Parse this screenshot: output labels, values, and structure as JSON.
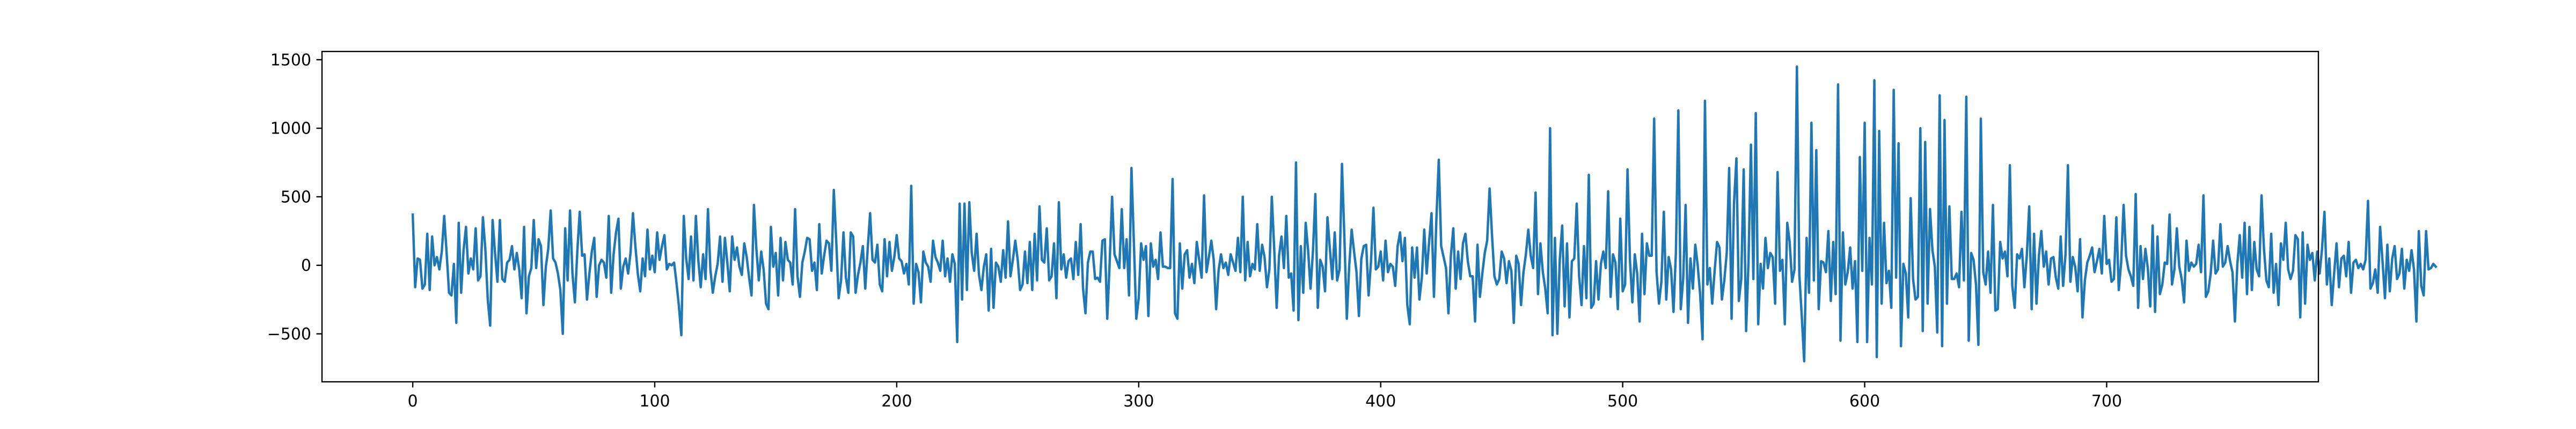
{
  "chart_data": {
    "type": "line",
    "title": "",
    "xlabel": "",
    "ylabel": "",
    "xlim": [
      -37.5,
      787.5
    ],
    "ylim": [
      -850,
      1560
    ],
    "grid": false,
    "legend": "none",
    "x_ticks": [
      0,
      100,
      200,
      300,
      400,
      500,
      600,
      700
    ],
    "x_tick_labels": [
      "0",
      "100",
      "200",
      "300",
      "400",
      "500",
      "600",
      "700"
    ],
    "y_ticks": [
      -500,
      0,
      500,
      1000,
      1500
    ],
    "y_tick_labels": [
      "−500",
      "0",
      "500",
      "1000",
      "1500"
    ],
    "series": [
      {
        "color": "#1f77b4",
        "x_start": 0,
        "x_step": 1,
        "values": [
          370,
          -160,
          50,
          40,
          -170,
          -140,
          230,
          -180,
          210,
          0,
          60,
          -30,
          100,
          360,
          90,
          -200,
          -220,
          10,
          -420,
          310,
          -200,
          110,
          280,
          -60,
          50,
          -30,
          270,
          -110,
          -80,
          350,
          120,
          -250,
          -440,
          330,
          90,
          -120,
          330,
          -100,
          -120,
          20,
          40,
          140,
          -30,
          90,
          -30,
          -240,
          280,
          -350,
          -80,
          -20,
          330,
          -20,
          190,
          140,
          -290,
          -10,
          120,
          400,
          50,
          20,
          -60,
          -180,
          -500,
          270,
          -110,
          400,
          -60,
          -270,
          100,
          390,
          70,
          80,
          -250,
          -60,
          100,
          200,
          -230,
          0,
          40,
          20,
          -90,
          360,
          -200,
          80,
          240,
          340,
          -170,
          -10,
          50,
          -60,
          90,
          380,
          140,
          -60,
          -190,
          50,
          -80,
          260,
          -30,
          70,
          -50,
          240,
          40,
          140,
          220,
          -30,
          10,
          0,
          20,
          -130,
          -300,
          -510,
          360,
          50,
          -100,
          210,
          -110,
          360,
          40,
          -160,
          80,
          -100,
          410,
          -30,
          -200,
          -80,
          10,
          210,
          -120,
          200,
          20,
          -190,
          210,
          40,
          130,
          -10,
          -70,
          160,
          60,
          -90,
          -220,
          440,
          120,
          -110,
          100,
          -30,
          -280,
          -320,
          280,
          -10,
          90,
          -220,
          200,
          -110,
          170,
          40,
          20,
          -140,
          410,
          -80,
          -230,
          20,
          100,
          200,
          190,
          -40,
          20,
          -180,
          300,
          -60,
          70,
          180,
          160,
          -40,
          550,
          180,
          -240,
          -110,
          240,
          -90,
          -200,
          240,
          210,
          -200,
          -70,
          20,
          140,
          -170,
          120,
          380,
          40,
          20,
          150,
          -140,
          -190,
          190,
          -80,
          170,
          -40,
          60,
          220,
          50,
          30,
          -60,
          10,
          -140,
          580,
          -280,
          10,
          -50,
          -270,
          100,
          20,
          -10,
          -120,
          180,
          60,
          20,
          -40,
          180,
          -80,
          50,
          -120,
          80,
          10,
          -560,
          450,
          -250,
          450,
          -180,
          460,
          90,
          -40,
          230,
          -70,
          -180,
          -10,
          80,
          -330,
          120,
          -310,
          20,
          -10,
          -120,
          110,
          -90,
          320,
          -80,
          40,
          180,
          40,
          -180,
          -140,
          100,
          -130,
          170,
          -180,
          230,
          -110,
          430,
          40,
          20,
          270,
          -110,
          -80,
          160,
          -240,
          460,
          -30,
          80,
          -90,
          30,
          50,
          -100,
          170,
          -70,
          300,
          -170,
          -350,
          20,
          100,
          100,
          -100,
          -90,
          -120,
          180,
          190,
          -390,
          20,
          500,
          80,
          30,
          -20,
          410,
          -20,
          190,
          -220,
          710,
          170,
          -390,
          -240,
          160,
          40,
          140,
          -370,
          160,
          -10,
          40,
          -100,
          240,
          -10,
          -10,
          -20,
          -20,
          630,
          -350,
          -390,
          160,
          -170,
          80,
          110,
          -90,
          10,
          -130,
          170,
          40,
          -90,
          510,
          -50,
          60,
          180,
          40,
          -320,
          -40,
          80,
          -20,
          20,
          -70,
          80,
          20,
          -40,
          200,
          -50,
          500,
          -110,
          170,
          -80,
          10,
          -30,
          300,
          -40,
          150,
          60,
          -160,
          -30,
          500,
          120,
          -310,
          70,
          210,
          -20,
          360,
          -90,
          -60,
          -330,
          750,
          -400,
          140,
          -200,
          310,
          110,
          -170,
          100,
          520,
          -310,
          40,
          -10,
          -190,
          350,
          120,
          -100,
          240,
          -110,
          -30,
          740,
          200,
          -390,
          0,
          260,
          100,
          -50,
          -370,
          50,
          140,
          150,
          -220,
          30,
          420,
          -30,
          -10,
          100,
          -110,
          180,
          -50,
          10,
          -10,
          -150,
          140,
          240,
          30,
          200,
          -290,
          -430,
          130,
          -90,
          130,
          -250,
          -90,
          260,
          -60,
          170,
          380,
          -230,
          330,
          770,
          140,
          60,
          -20,
          -350,
          70,
          270,
          -170,
          100,
          -100,
          160,
          230,
          30,
          -80,
          -80,
          -410,
          150,
          -230,
          -60,
          90,
          180,
          560,
          220,
          -80,
          -140,
          -100,
          100,
          50,
          -130,
          30,
          -40,
          -420,
          70,
          10,
          -290,
          -50,
          80,
          260,
          70,
          -20,
          530,
          -210,
          160,
          -50,
          -170,
          -350,
          1000,
          -510,
          200,
          -500,
          40,
          290,
          -300,
          160,
          -380,
          30,
          50,
          450,
          -80,
          -290,
          140,
          -240,
          660,
          -310,
          -280,
          30,
          -250,
          10,
          100,
          -20,
          540,
          -230,
          80,
          20,
          -320,
          340,
          -190,
          -140,
          700,
          40,
          -270,
          80,
          -60,
          -410,
          230,
          -210,
          160,
          70,
          70,
          1070,
          -50,
          -280,
          -120,
          390,
          -250,
          60,
          -30,
          -340,
          100,
          1130,
          -320,
          -100,
          440,
          -420,
          50,
          -170,
          150,
          0,
          -210,
          -540,
          1200,
          -140,
          -20,
          -280,
          -40,
          170,
          130,
          -250,
          -110,
          90,
          710,
          -390,
          450,
          780,
          -260,
          -100,
          700,
          -480,
          30,
          880,
          -100,
          1110,
          -430,
          10,
          -170,
          200,
          -20,
          90,
          60,
          -280,
          680,
          -40,
          40,
          -430,
          310,
          170,
          -120,
          -30,
          1450,
          -70,
          -370,
          -700,
          200,
          -200,
          1040,
          -110,
          840,
          -320,
          30,
          20,
          -50,
          250,
          -260,
          170,
          -210,
          1320,
          -550,
          240,
          -140,
          -50,
          130,
          -170,
          30,
          -560,
          790,
          -40,
          1040,
          -560,
          200,
          -140,
          1350,
          -670,
          980,
          -280,
          310,
          -130,
          -40,
          -310,
          1280,
          -90,
          890,
          -590,
          10,
          -60,
          -380,
          490,
          -100,
          -250,
          -230,
          1000,
          -480,
          900,
          -280,
          410,
          110,
          -10,
          -490,
          1240,
          -590,
          1060,
          -280,
          430,
          -100,
          -100,
          -60,
          -160,
          390,
          -110,
          1230,
          -550,
          90,
          40,
          -140,
          -580,
          1070,
          -50,
          -140,
          100,
          -200,
          440,
          -330,
          -320,
          170,
          50,
          100,
          -80,
          730,
          -150,
          -310,
          80,
          50,
          120,
          -160,
          70,
          430,
          -320,
          230,
          -280,
          70,
          250,
          -10,
          100,
          -140,
          50,
          60,
          -90,
          -170,
          210,
          -150,
          80,
          730,
          -120,
          60,
          -10,
          -190,
          190,
          -380,
          -110,
          20,
          70,
          130,
          -50,
          30,
          120,
          -60,
          360,
          10,
          40,
          -120,
          -100,
          350,
          -180,
          20,
          440,
          70,
          -30,
          -80,
          -150,
          520,
          -310,
          140,
          -100,
          120,
          -20,
          -300,
          290,
          -340,
          210,
          -210,
          -140,
          20,
          10,
          370,
          -140,
          -30,
          270,
          -10,
          -100,
          -270,
          180,
          -40,
          20,
          -10,
          10,
          150,
          -50,
          510,
          -230,
          -190,
          -60,
          180,
          -60,
          -30,
          300,
          -10,
          20,
          140,
          30,
          -50,
          -410,
          10,
          220,
          -90,
          310,
          -210,
          280,
          -180,
          170,
          -30,
          -80,
          510,
          120,
          -110,
          -160,
          230,
          -200,
          10,
          -290,
          160,
          40,
          310,
          -30,
          -100,
          -40,
          220,
          190,
          -380,
          240,
          -280,
          150,
          40,
          90,
          -110,
          100,
          -60,
          120,
          390,
          -140,
          50,
          -290,
          -60,
          160,
          -160,
          50,
          70,
          -80,
          170,
          -200,
          20,
          40,
          -20,
          10,
          -30,
          40,
          470,
          -170,
          -130,
          -30,
          -200,
          280,
          30,
          -240,
          150,
          -190,
          50,
          140,
          -100,
          -60,
          120,
          -170,
          40,
          -40,
          110,
          -30,
          -410,
          250,
          -150,
          -220,
          250,
          -30,
          -20,
          10,
          -10
        ]
      }
    ]
  }
}
